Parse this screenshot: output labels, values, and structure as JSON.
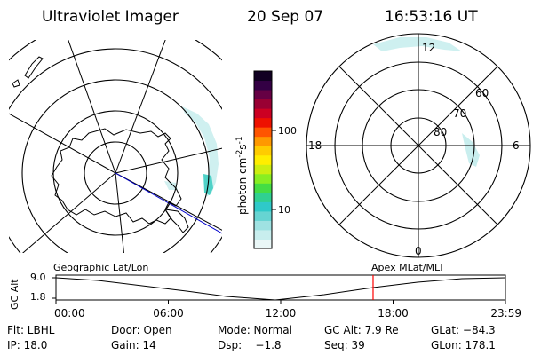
{
  "header": {
    "instrument": "Ultraviolet Imager",
    "date": "20 Sep 07",
    "time": "16:53:16 UT"
  },
  "geo_panel": {
    "label": "Geographic Lat/Lon"
  },
  "mag_panel": {
    "label": "Apex MLat/MLT",
    "mlt_labels": {
      "top": "12",
      "left": "18",
      "right": "6",
      "bottom": "0"
    },
    "mlat_labels": [
      "60",
      "70",
      "80"
    ]
  },
  "colorbar": {
    "unit_text": "photon cm",
    "unit_sup1": "-2",
    "unit_s": "s",
    "unit_sup2": "-1",
    "tick_labels": [
      "100",
      "10"
    ],
    "colors": [
      "#eaf7f7",
      "#c8eeee",
      "#9fe2e2",
      "#66d4d2",
      "#2fc9c9",
      "#30d090",
      "#44dd44",
      "#88ee22",
      "#ccee11",
      "#ffee00",
      "#ffcc00",
      "#ff9900",
      "#ff5500",
      "#ee1100",
      "#cc0022",
      "#990033",
      "#660044",
      "#330044",
      "#110022"
    ]
  },
  "timeline": {
    "y_axis_label": "GC Alt",
    "y_ticks": [
      "9.0",
      "1.8"
    ],
    "x_ticks": [
      "00:00",
      "06:00",
      "12:00",
      "18:00",
      "23:59"
    ],
    "current_time_fraction": 0.7055,
    "marker_color": "#ff0000"
  },
  "status": {
    "row1": {
      "filter": "Flt: LBHL",
      "door": "Door: Open",
      "mode": "Mode: Normal",
      "gc_alt": "GC Alt: 7.9 Re",
      "glat": "GLat: −84.3"
    },
    "row2": {
      "ip": "IP: 18.0",
      "gain": "Gain: 14",
      "dsp": "Dsp:    −1.8",
      "seq": "Seq: 39",
      "glon": "GLon: 178.1"
    }
  }
}
